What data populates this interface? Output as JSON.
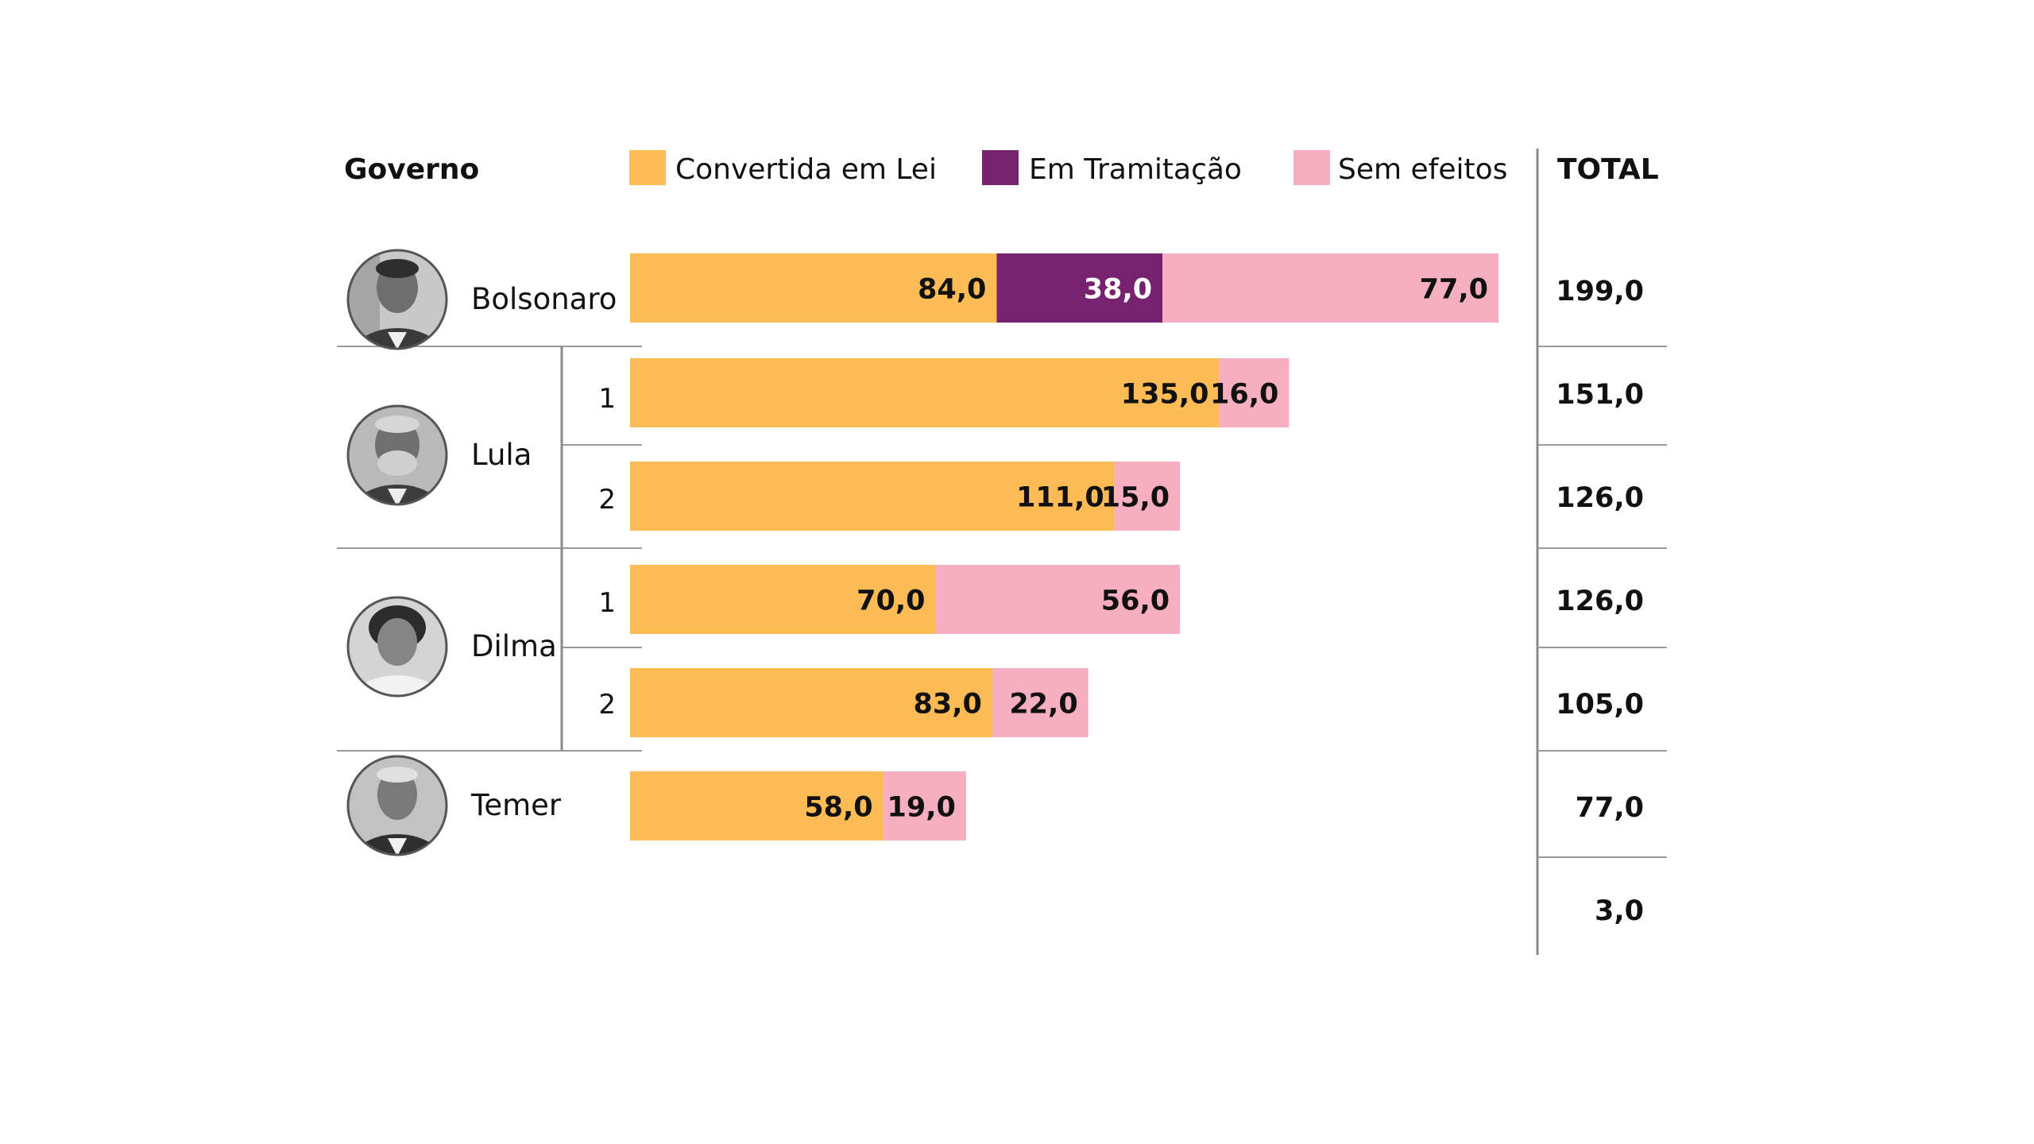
{
  "chart_data": {
    "type": "bar",
    "orientation": "horizontal",
    "stacked": true,
    "header_label": "Governo",
    "total_label": "TOTAL",
    "legend_placement": "top",
    "series": [
      {
        "name": "Convertida em Lei",
        "color": "#fcbb54",
        "label_color": "#111111"
      },
      {
        "name": "Em Tramitação",
        "color": "#77226e",
        "label_color": "#ffffff"
      },
      {
        "name": "Sem efeitos",
        "color": "#f6afc1",
        "label_color": "#111111"
      }
    ],
    "rows": [
      {
        "governo": "Bolsonaro",
        "mandato": "",
        "values": [
          84.0,
          38.0,
          77.0
        ],
        "labels": [
          "84,0",
          "38,0",
          "77,0"
        ],
        "total": "199,0"
      },
      {
        "governo": "Lula",
        "mandato": "1",
        "values": [
          135.0,
          0,
          16.0
        ],
        "labels": [
          "135,0",
          "",
          "16,0"
        ],
        "total": "151,0"
      },
      {
        "governo": "Lula",
        "mandato": "2",
        "values": [
          111.0,
          0,
          15.0
        ],
        "labels": [
          "111,0",
          "",
          "15,0"
        ],
        "total": "126,0"
      },
      {
        "governo": "Dilma",
        "mandato": "1",
        "values": [
          70.0,
          0,
          56.0
        ],
        "labels": [
          "70,0",
          "",
          "56,0"
        ],
        "total": "126,0"
      },
      {
        "governo": "Dilma",
        "mandato": "2",
        "values": [
          83.0,
          0,
          22.0
        ],
        "labels": [
          "83,0",
          "",
          "22,0"
        ],
        "total": "105,0"
      },
      {
        "governo": "Temer",
        "mandato": "",
        "values": [
          58.0,
          0,
          19.0
        ],
        "labels": [
          "58,0",
          "",
          "19,0"
        ],
        "total": "77,0"
      }
    ],
    "extra_totals": [
      "3,0"
    ],
    "xlim": [
      0,
      199
    ]
  }
}
